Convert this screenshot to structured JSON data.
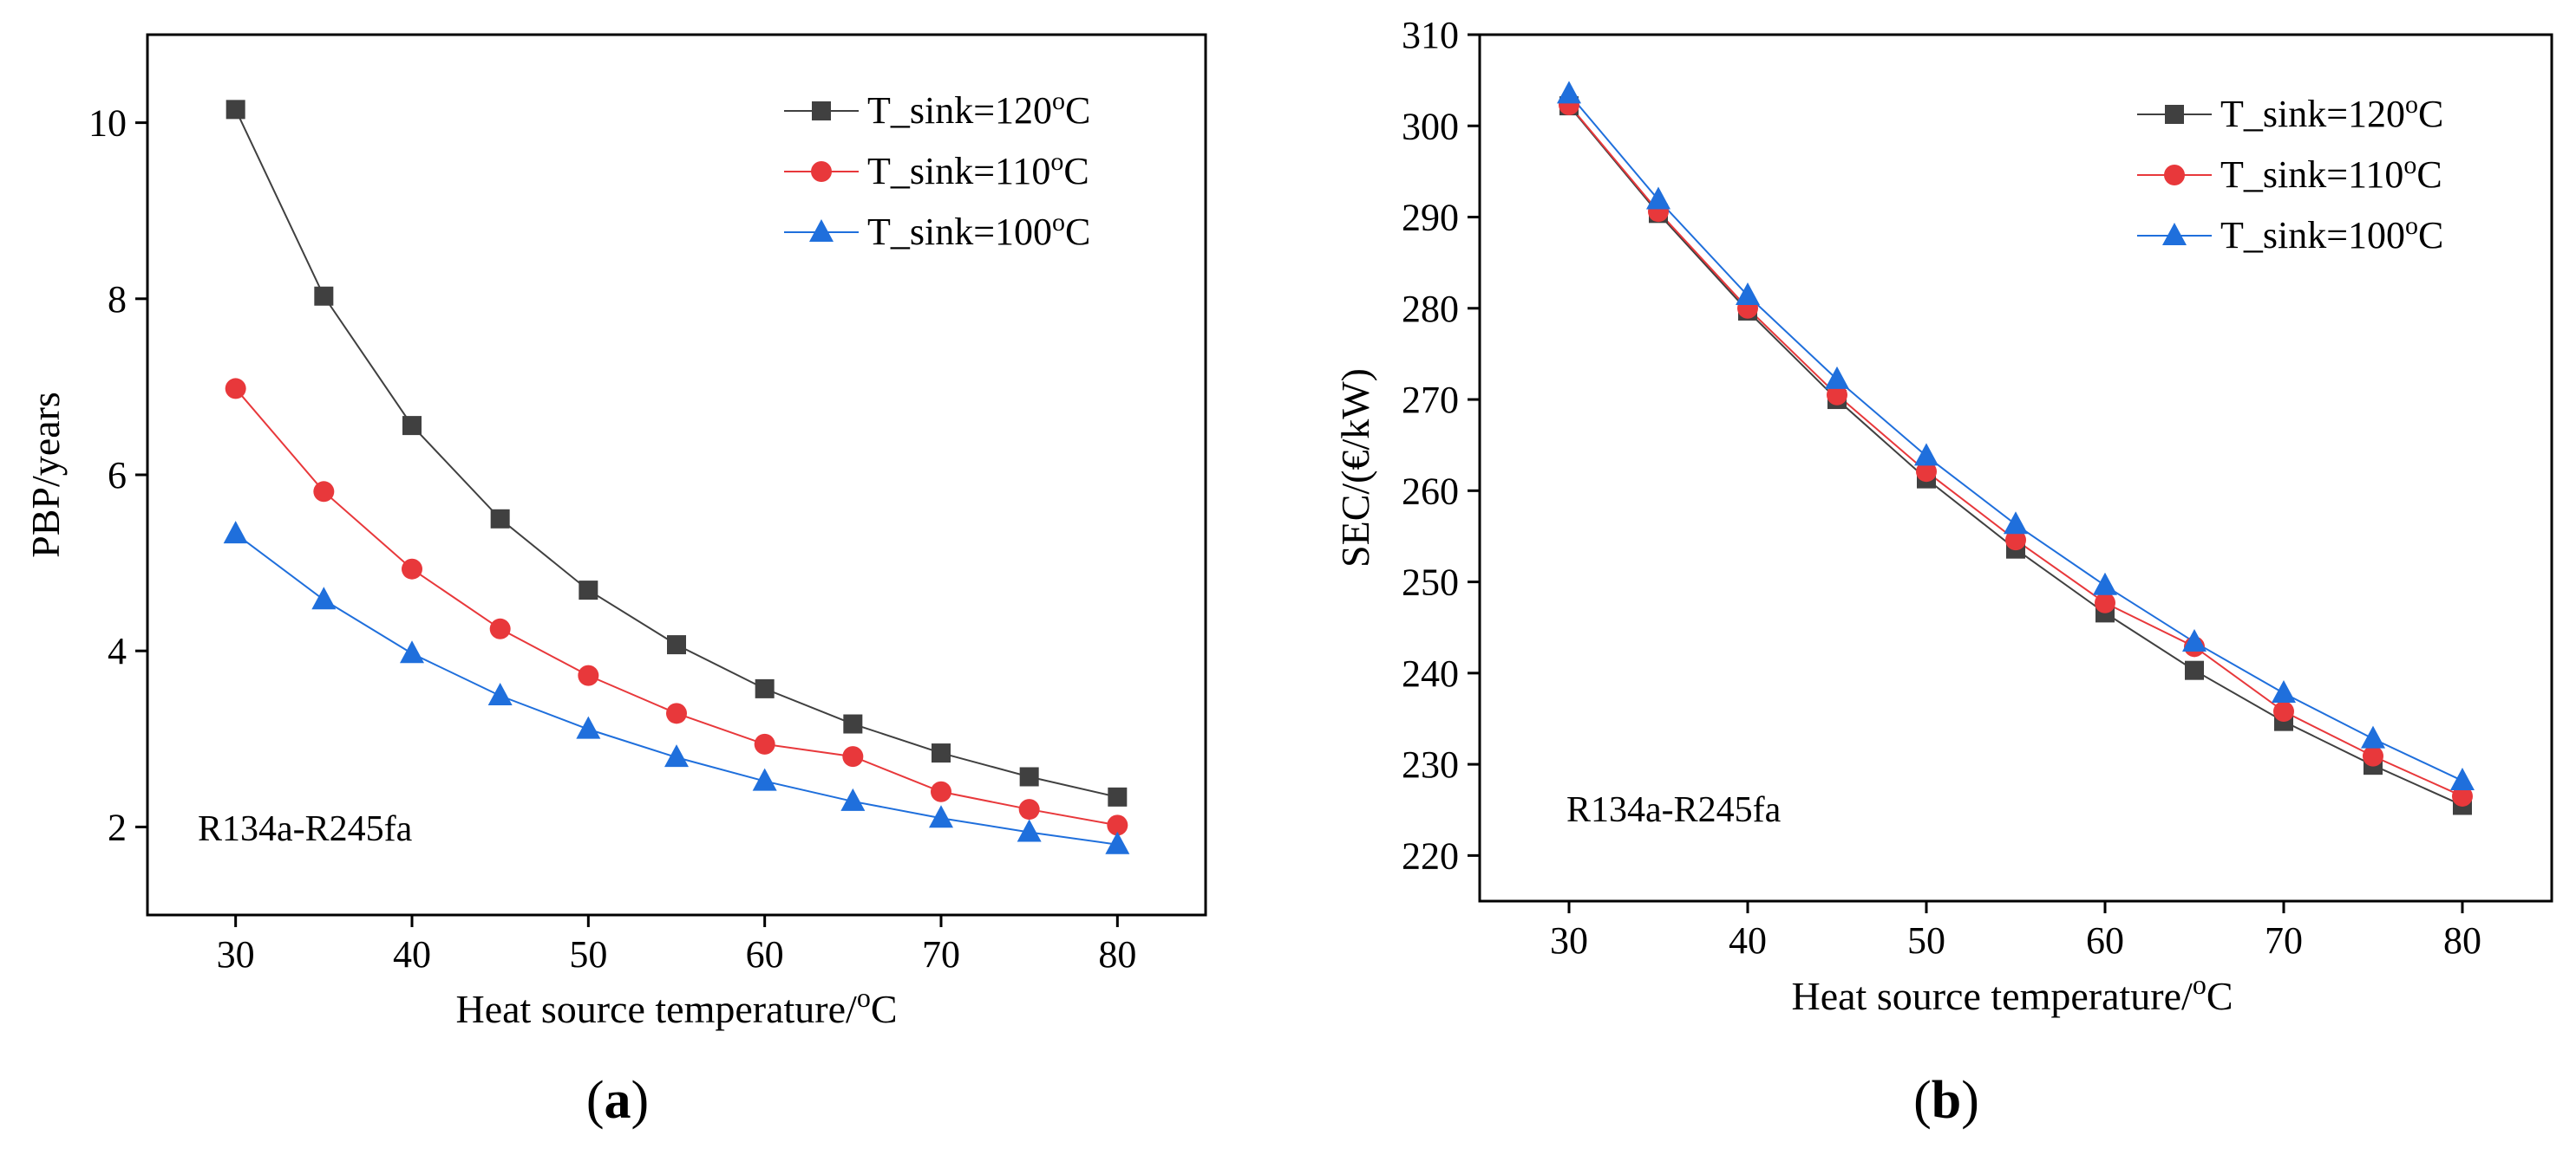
{
  "figure": {
    "panels": [
      {
        "panel_label": "a",
        "xlabel": "Heat source temperature/",
        "xlabel_unit_sup": "o",
        "xlabel_unit": "C",
        "ylabel": "PBP/years",
        "annotation": "R134a-R245fa",
        "legend_entries": [
          {
            "prefix": "T_sink=120",
            "sup": "o",
            "suffix": "C"
          },
          {
            "prefix": "T_sink=110",
            "sup": "o",
            "suffix": "C"
          },
          {
            "prefix": "T_sink=100",
            "sup": "o",
            "suffix": "C"
          }
        ]
      },
      {
        "panel_label": "b",
        "xlabel": "Heat source temperature/",
        "xlabel_unit_sup": "o",
        "xlabel_unit": "C",
        "ylabel": "SEC/(€/kW)",
        "annotation": "R134a-R245fa",
        "legend_entries": [
          {
            "prefix": "T_sink=120",
            "sup": "o",
            "suffix": "C"
          },
          {
            "prefix": "T_sink=110",
            "sup": "o",
            "suffix": "C"
          },
          {
            "prefix": "T_sink=100",
            "sup": "o",
            "suffix": "C"
          }
        ]
      }
    ]
  },
  "chart_data": [
    {
      "type": "line",
      "title": "",
      "xlabel": "Heat source temperature/°C",
      "ylabel": "PBP/years",
      "xlim": [
        25,
        85
      ],
      "ylim": [
        1,
        11
      ],
      "xticks": [
        30,
        40,
        50,
        60,
        70,
        80
      ],
      "yticks": [
        2,
        4,
        6,
        8,
        10
      ],
      "grid": false,
      "legend_position": "top-right",
      "x": [
        30,
        35,
        40,
        45,
        50,
        55,
        60,
        65,
        70,
        75,
        80
      ],
      "series": [
        {
          "name": "T_sink=120°C",
          "color": "#404040",
          "marker": "square",
          "values": [
            10.15,
            8.03,
            6.56,
            5.5,
            4.69,
            4.07,
            3.57,
            3.17,
            2.84,
            2.57,
            2.34
          ]
        },
        {
          "name": "T_sink=110°C",
          "color": "#e8383b",
          "marker": "circle",
          "values": [
            6.98,
            5.81,
            4.93,
            4.25,
            3.72,
            3.29,
            2.94,
            2.8,
            2.4,
            2.2,
            2.02
          ]
        },
        {
          "name": "T_sink=100°C",
          "color": "#1f6fdc",
          "marker": "triangle",
          "values": [
            5.33,
            4.58,
            3.97,
            3.49,
            3.11,
            2.79,
            2.52,
            2.29,
            2.1,
            1.94,
            1.8
          ]
        }
      ]
    },
    {
      "type": "line",
      "title": "",
      "xlabel": "Heat source temperature/°C",
      "ylabel": "SEC/(€/kW)",
      "xlim": [
        25,
        85
      ],
      "ylim": [
        215,
        310
      ],
      "xticks": [
        30,
        40,
        50,
        60,
        70,
        80
      ],
      "yticks": [
        220,
        230,
        240,
        250,
        260,
        270,
        280,
        290,
        300,
        310
      ],
      "grid": false,
      "legend_position": "top-right",
      "x": [
        30,
        35,
        40,
        45,
        50,
        55,
        60,
        65,
        70,
        75,
        80
      ],
      "series": [
        {
          "name": "T_sink=120°C",
          "color": "#404040",
          "marker": "square",
          "values": [
            302.2,
            290.4,
            279.7,
            270.0,
            261.3,
            253.6,
            246.6,
            240.3,
            234.7,
            229.9,
            225.5
          ]
        },
        {
          "name": "T_sink=110°C",
          "color": "#e8383b",
          "marker": "circle",
          "values": [
            302.3,
            290.6,
            280.0,
            270.5,
            262.1,
            254.6,
            247.7,
            242.9,
            235.8,
            230.9,
            226.5
          ]
        },
        {
          "name": "T_sink=100°C",
          "color": "#1f6fdc",
          "marker": "triangle",
          "values": [
            303.5,
            291.9,
            281.4,
            272.2,
            263.8,
            256.3,
            249.6,
            243.4,
            237.8,
            232.8,
            228.2
          ]
        }
      ]
    }
  ]
}
